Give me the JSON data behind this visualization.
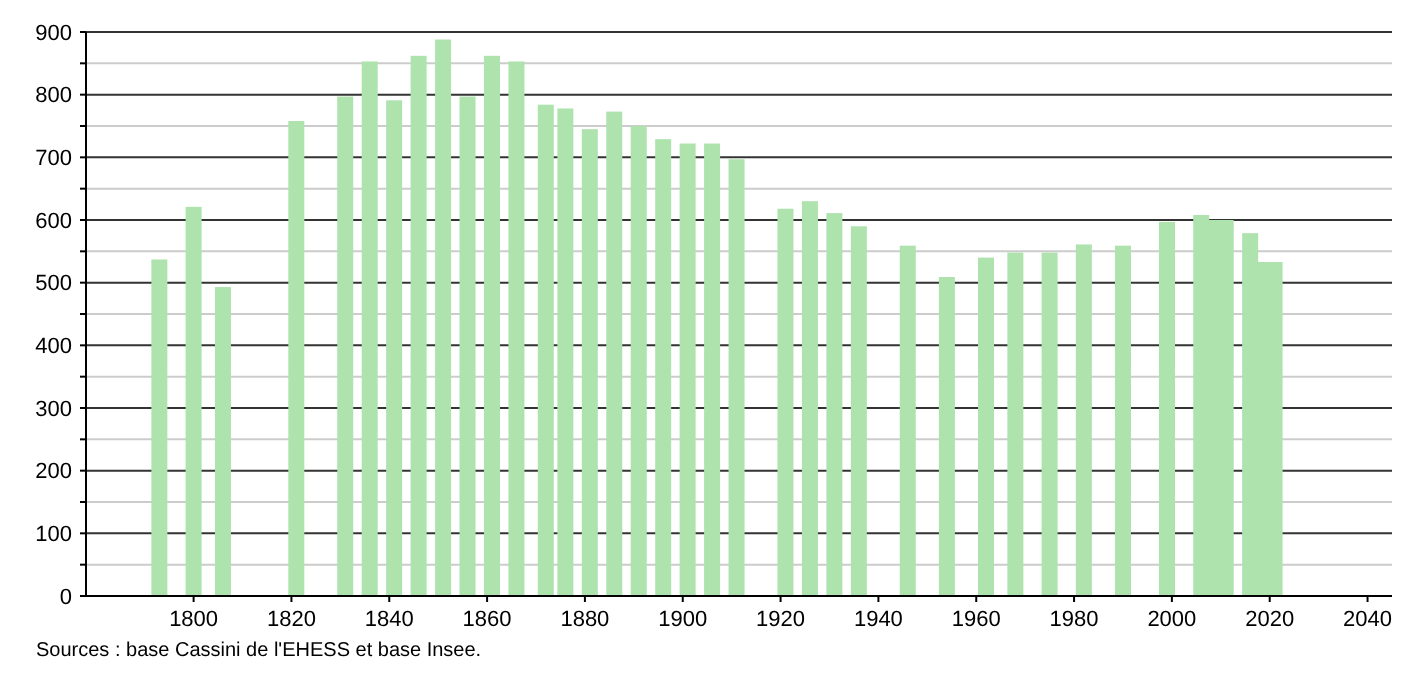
{
  "chart_data": {
    "type": "bar",
    "x": [
      1793,
      1800,
      1806,
      1821,
      1831,
      1836,
      1841,
      1846,
      1851,
      1856,
      1861,
      1866,
      1872,
      1876,
      1881,
      1886,
      1891,
      1896,
      1901,
      1906,
      1911,
      1921,
      1926,
      1931,
      1936,
      1946,
      1954,
      1962,
      1968,
      1975,
      1982,
      1990,
      1999,
      2006,
      2008,
      2011,
      2016,
      2019,
      2021
    ],
    "values": [
      537,
      621,
      493,
      758,
      797,
      853,
      791,
      862,
      888,
      797,
      862,
      853,
      784,
      778,
      745,
      773,
      750,
      729,
      722,
      722,
      697,
      618,
      630,
      611,
      590,
      559,
      509,
      540,
      548,
      548,
      561,
      559,
      597,
      608,
      600,
      600,
      579,
      533,
      533
    ],
    "color": "#aee3ad",
    "xlim": [
      1778,
      2045
    ],
    "xticks": [
      1800,
      1820,
      1840,
      1860,
      1880,
      1900,
      1920,
      1940,
      1960,
      1980,
      2000,
      2020,
      2040
    ],
    "ylim": [
      0,
      900
    ],
    "yticks": [
      0,
      {
        "value": 50,
        "label": null
      },
      100,
      {
        "value": 150,
        "label": null
      },
      200,
      {
        "value": 250,
        "label": null
      },
      300,
      {
        "value": 350,
        "label": null
      },
      400,
      {
        "value": 450,
        "label": null
      },
      500,
      {
        "value": 550,
        "label": null
      },
      600,
      {
        "value": 650,
        "label": null
      },
      700,
      {
        "value": 750,
        "label": null
      },
      800,
      {
        "value": 850,
        "label": null
      },
      900
    ],
    "grid": true,
    "annotations": [
      "Sources : base Cassini de l'EHESS et base Insee."
    ]
  }
}
